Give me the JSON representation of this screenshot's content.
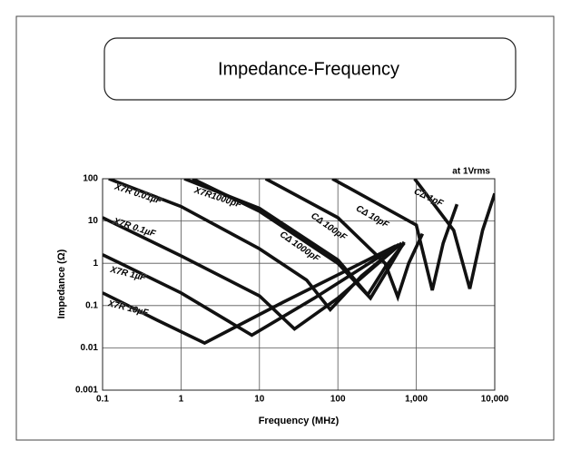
{
  "chart_data": {
    "type": "line",
    "title": "Impedance-Frequency",
    "annotation": "at  1Vrms",
    "xlabel": "Frequency (MHz)",
    "ylabel": "Impedance (Ω)",
    "xscale": "log",
    "yscale": "log",
    "grid": true,
    "xlim": [
      0.1,
      10000
    ],
    "ylim": [
      0.001,
      100
    ],
    "xticks": [
      0.1,
      1,
      10,
      100,
      {
        "value": 1000,
        "label": "1,000"
      },
      {
        "value": 10000,
        "label": "10,000"
      }
    ],
    "yticks": [
      0.001,
      0.01,
      0.1,
      1,
      10,
      100
    ],
    "series": [
      {
        "name": "X7R 0.01µF",
        "color": "#111111",
        "x": [
          0.12,
          1,
          10,
          40,
          80,
          200,
          600
        ],
        "values": [
          100,
          22,
          2.2,
          0.4,
          0.08,
          0.5,
          2.7
        ]
      },
      {
        "name": "X7R 0.1µF",
        "color": "#111111",
        "x": [
          0.1,
          1,
          10,
          28,
          100,
          650
        ],
        "values": [
          12,
          1.5,
          0.17,
          0.028,
          0.15,
          3
        ]
      },
      {
        "name": "X7R 1µF",
        "color": "#111111",
        "x": [
          0.1,
          1,
          8,
          50,
          600
        ],
        "values": [
          1.6,
          0.2,
          0.02,
          0.15,
          2.8
        ]
      },
      {
        "name": "X7R 10µF",
        "color": "#111111",
        "x": [
          0.1,
          0.5,
          2,
          20,
          550
        ],
        "values": [
          0.2,
          0.045,
          0.013,
          0.12,
          2.6
        ]
      },
      {
        "name": "X7R1000pF",
        "color": "#111111",
        "x": [
          1.1,
          10,
          100,
          240,
          400,
          700
        ],
        "values": [
          100,
          20,
          1.2,
          0.18,
          0.8,
          3
        ]
      },
      {
        "name": "CΔ 1000pF",
        "color": "#111111",
        "x": [
          1.4,
          10,
          100,
          260,
          450,
          700
        ],
        "values": [
          100,
          17,
          1,
          0.15,
          0.8,
          3.2
        ]
      },
      {
        "name": "CΔ 100pF",
        "color": "#111111",
        "x": [
          12,
          100,
          400,
          580,
          800,
          1200
        ],
        "values": [
          100,
          12,
          1,
          0.16,
          1,
          5
        ]
      },
      {
        "name": "CΔ 10pF",
        "color": "#111111",
        "x": [
          85,
          1000,
          1600,
          2200,
          3300
        ],
        "values": [
          100,
          8,
          0.23,
          3,
          25
        ]
      },
      {
        "name": "CΔ 1pF",
        "color": "#111111",
        "x": [
          950,
          3000,
          4800,
          7000,
          10000
        ],
        "values": [
          100,
          6,
          0.25,
          6,
          45
        ]
      }
    ]
  }
}
